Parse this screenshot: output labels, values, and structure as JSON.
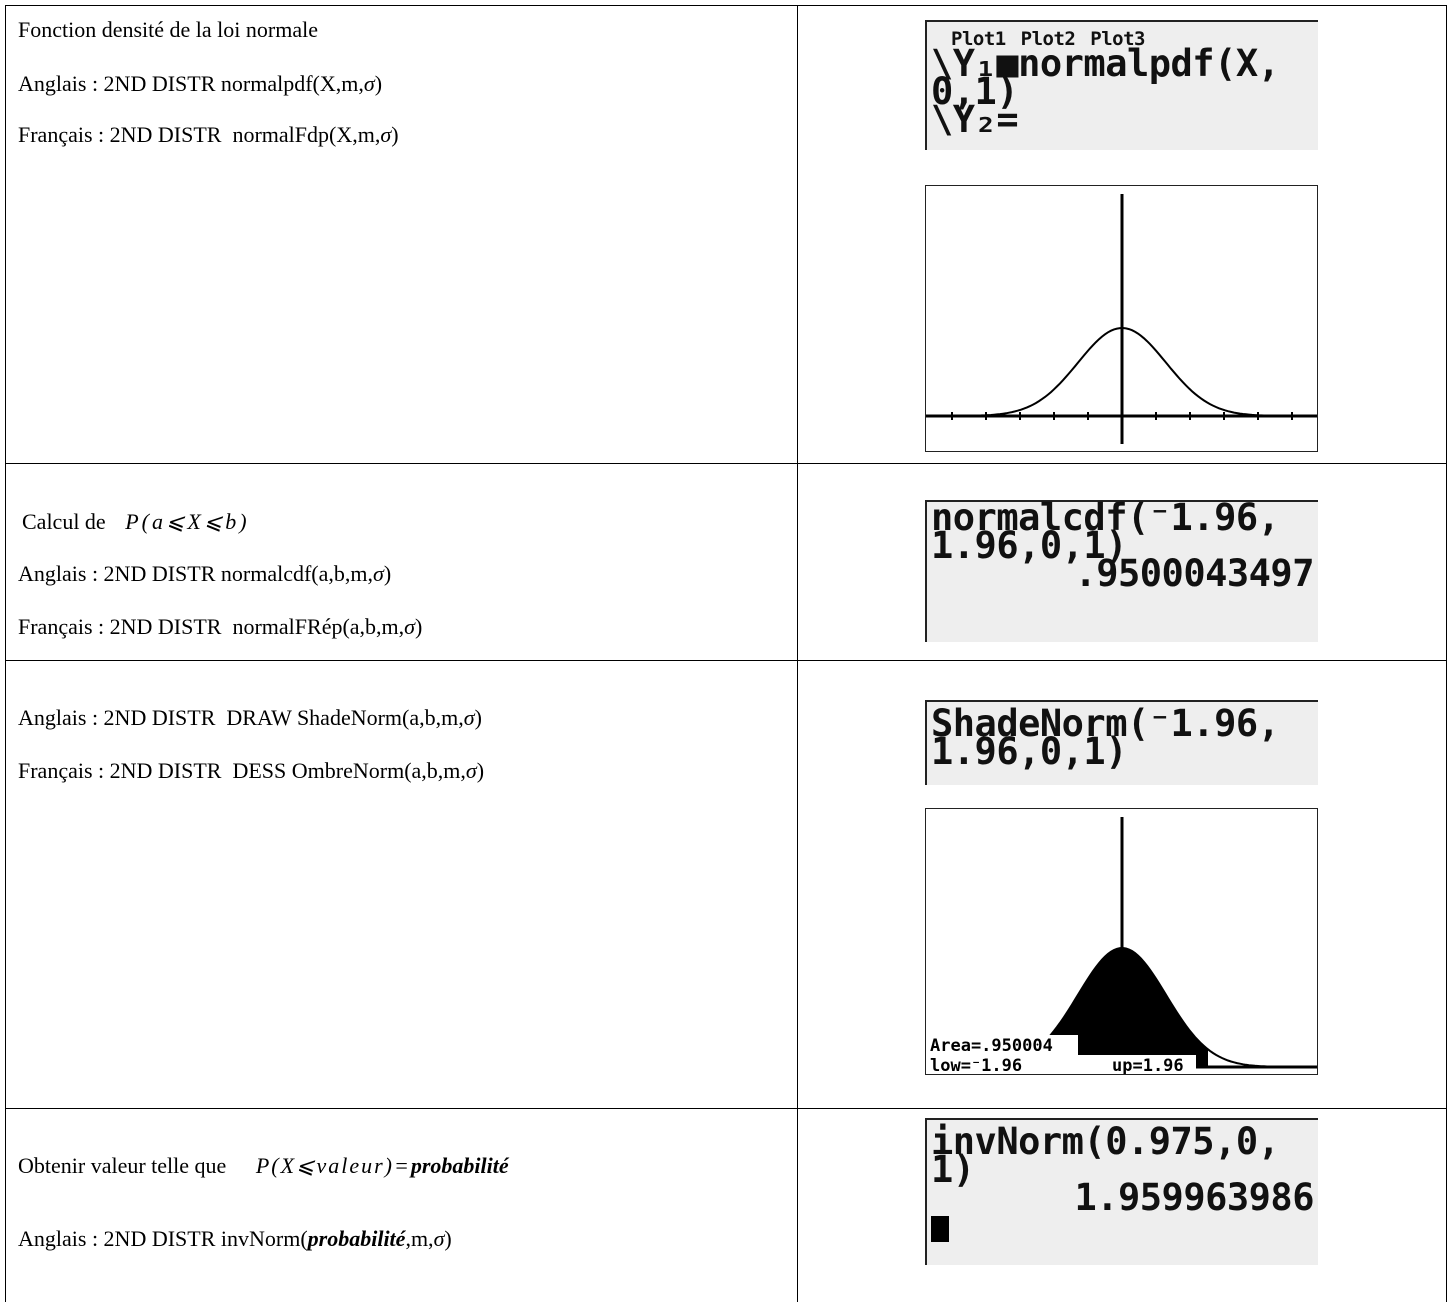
{
  "table": {
    "rows": [
      {
        "left": [
          [
            "Fonction densité de la loi normale"
          ],
          [
            "Anglais : 2ND DISTR normalpdf(X,m,",
            "σ",
            ")"
          ],
          [
            "Français : 2ND DISTR  normalFdp(X,m,",
            "σ",
            ")"
          ]
        ],
        "screen": [
          "Plot1 Plot2 Plot3",
          "\\Y₁■normalpdf(X,",
          "0,1)",
          "\\Y₂="
        ]
      },
      {
        "left": [
          [
            "Calcul de ",
            "P(a⩽X⩽b)"
          ],
          [
            "Anglais : 2ND DISTR normalcdf(a,b,m,",
            "σ",
            ")"
          ],
          [
            "Français : 2ND DISTR  normalFRép(a,b,m,",
            "σ",
            ")"
          ]
        ],
        "screen": [
          "normalcdf(⁻1.96,",
          "1.96,0,1)",
          ".9500043497"
        ]
      },
      {
        "left": [
          [
            "Anglais : 2ND DISTR  DRAW ShadeNorm(a,b,m,",
            "σ",
            ")"
          ],
          [
            "Français : 2ND DISTR  DESS OmbreNorm(a,b,m,",
            "σ",
            ")"
          ]
        ],
        "screen": [
          "ShadeNorm(⁻1.96,",
          "1.96,0,1)"
        ],
        "graph": [
          "Area=.950004",
          "low=⁻1.96",
          "up=1.96"
        ]
      },
      {
        "left": [
          [
            "Obtenir valeur telle que ",
            "P(X⩽valeur)=",
            "probabilité"
          ],
          [
            "Anglais : 2ND DISTR invNorm(",
            "probabilité",
            ",m,",
            "σ",
            ")"
          ]
        ],
        "screen": [
          "invNorm(0.975,0,",
          "1)",
          "1.959963986"
        ]
      }
    ]
  }
}
